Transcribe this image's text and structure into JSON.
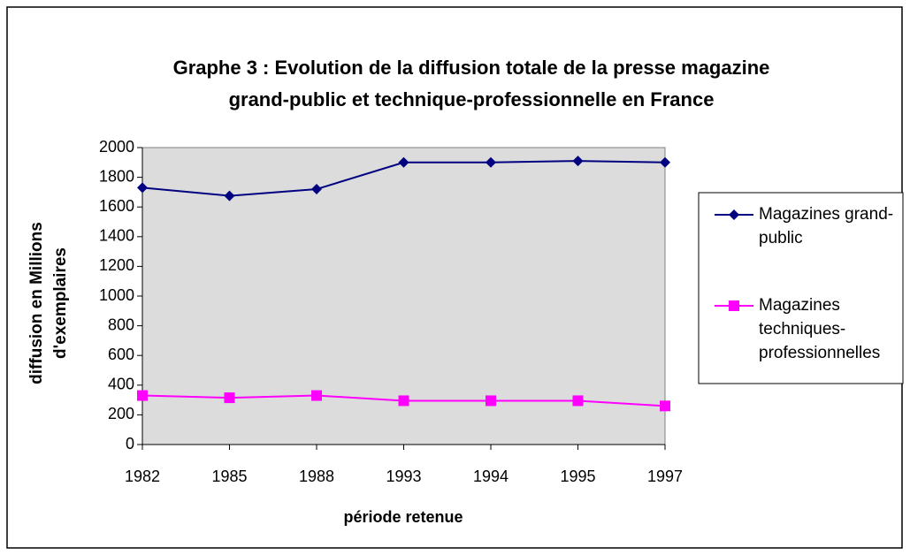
{
  "chart_data": {
    "type": "line",
    "title": [
      "Graphe 3 : Evolution de la diffusion totale de la presse magazine",
      "grand-public et technique-professionnelle en France"
    ],
    "xlabel": "période retenue",
    "ylabel": [
      "diffusion en Millions",
      "d'exemplaires"
    ],
    "categories": [
      "1982",
      "1985",
      "1988",
      "1993",
      "1994",
      "1995",
      "1997"
    ],
    "series": [
      {
        "name": "Magazines grand-public",
        "color": "#000080",
        "marker": "diamond",
        "values": [
          1730,
          1675,
          1720,
          1900,
          1900,
          1910,
          1900
        ]
      },
      {
        "name": "Magazines techniques-professionnelles",
        "color": "#ff00ff",
        "marker": "square",
        "values": [
          330,
          315,
          330,
          295,
          295,
          295,
          260
        ]
      }
    ],
    "ylim": [
      0,
      2000
    ],
    "yticks": [
      0,
      200,
      400,
      600,
      800,
      1000,
      1200,
      1400,
      1600,
      1800,
      2000
    ],
    "legend": "right"
  }
}
